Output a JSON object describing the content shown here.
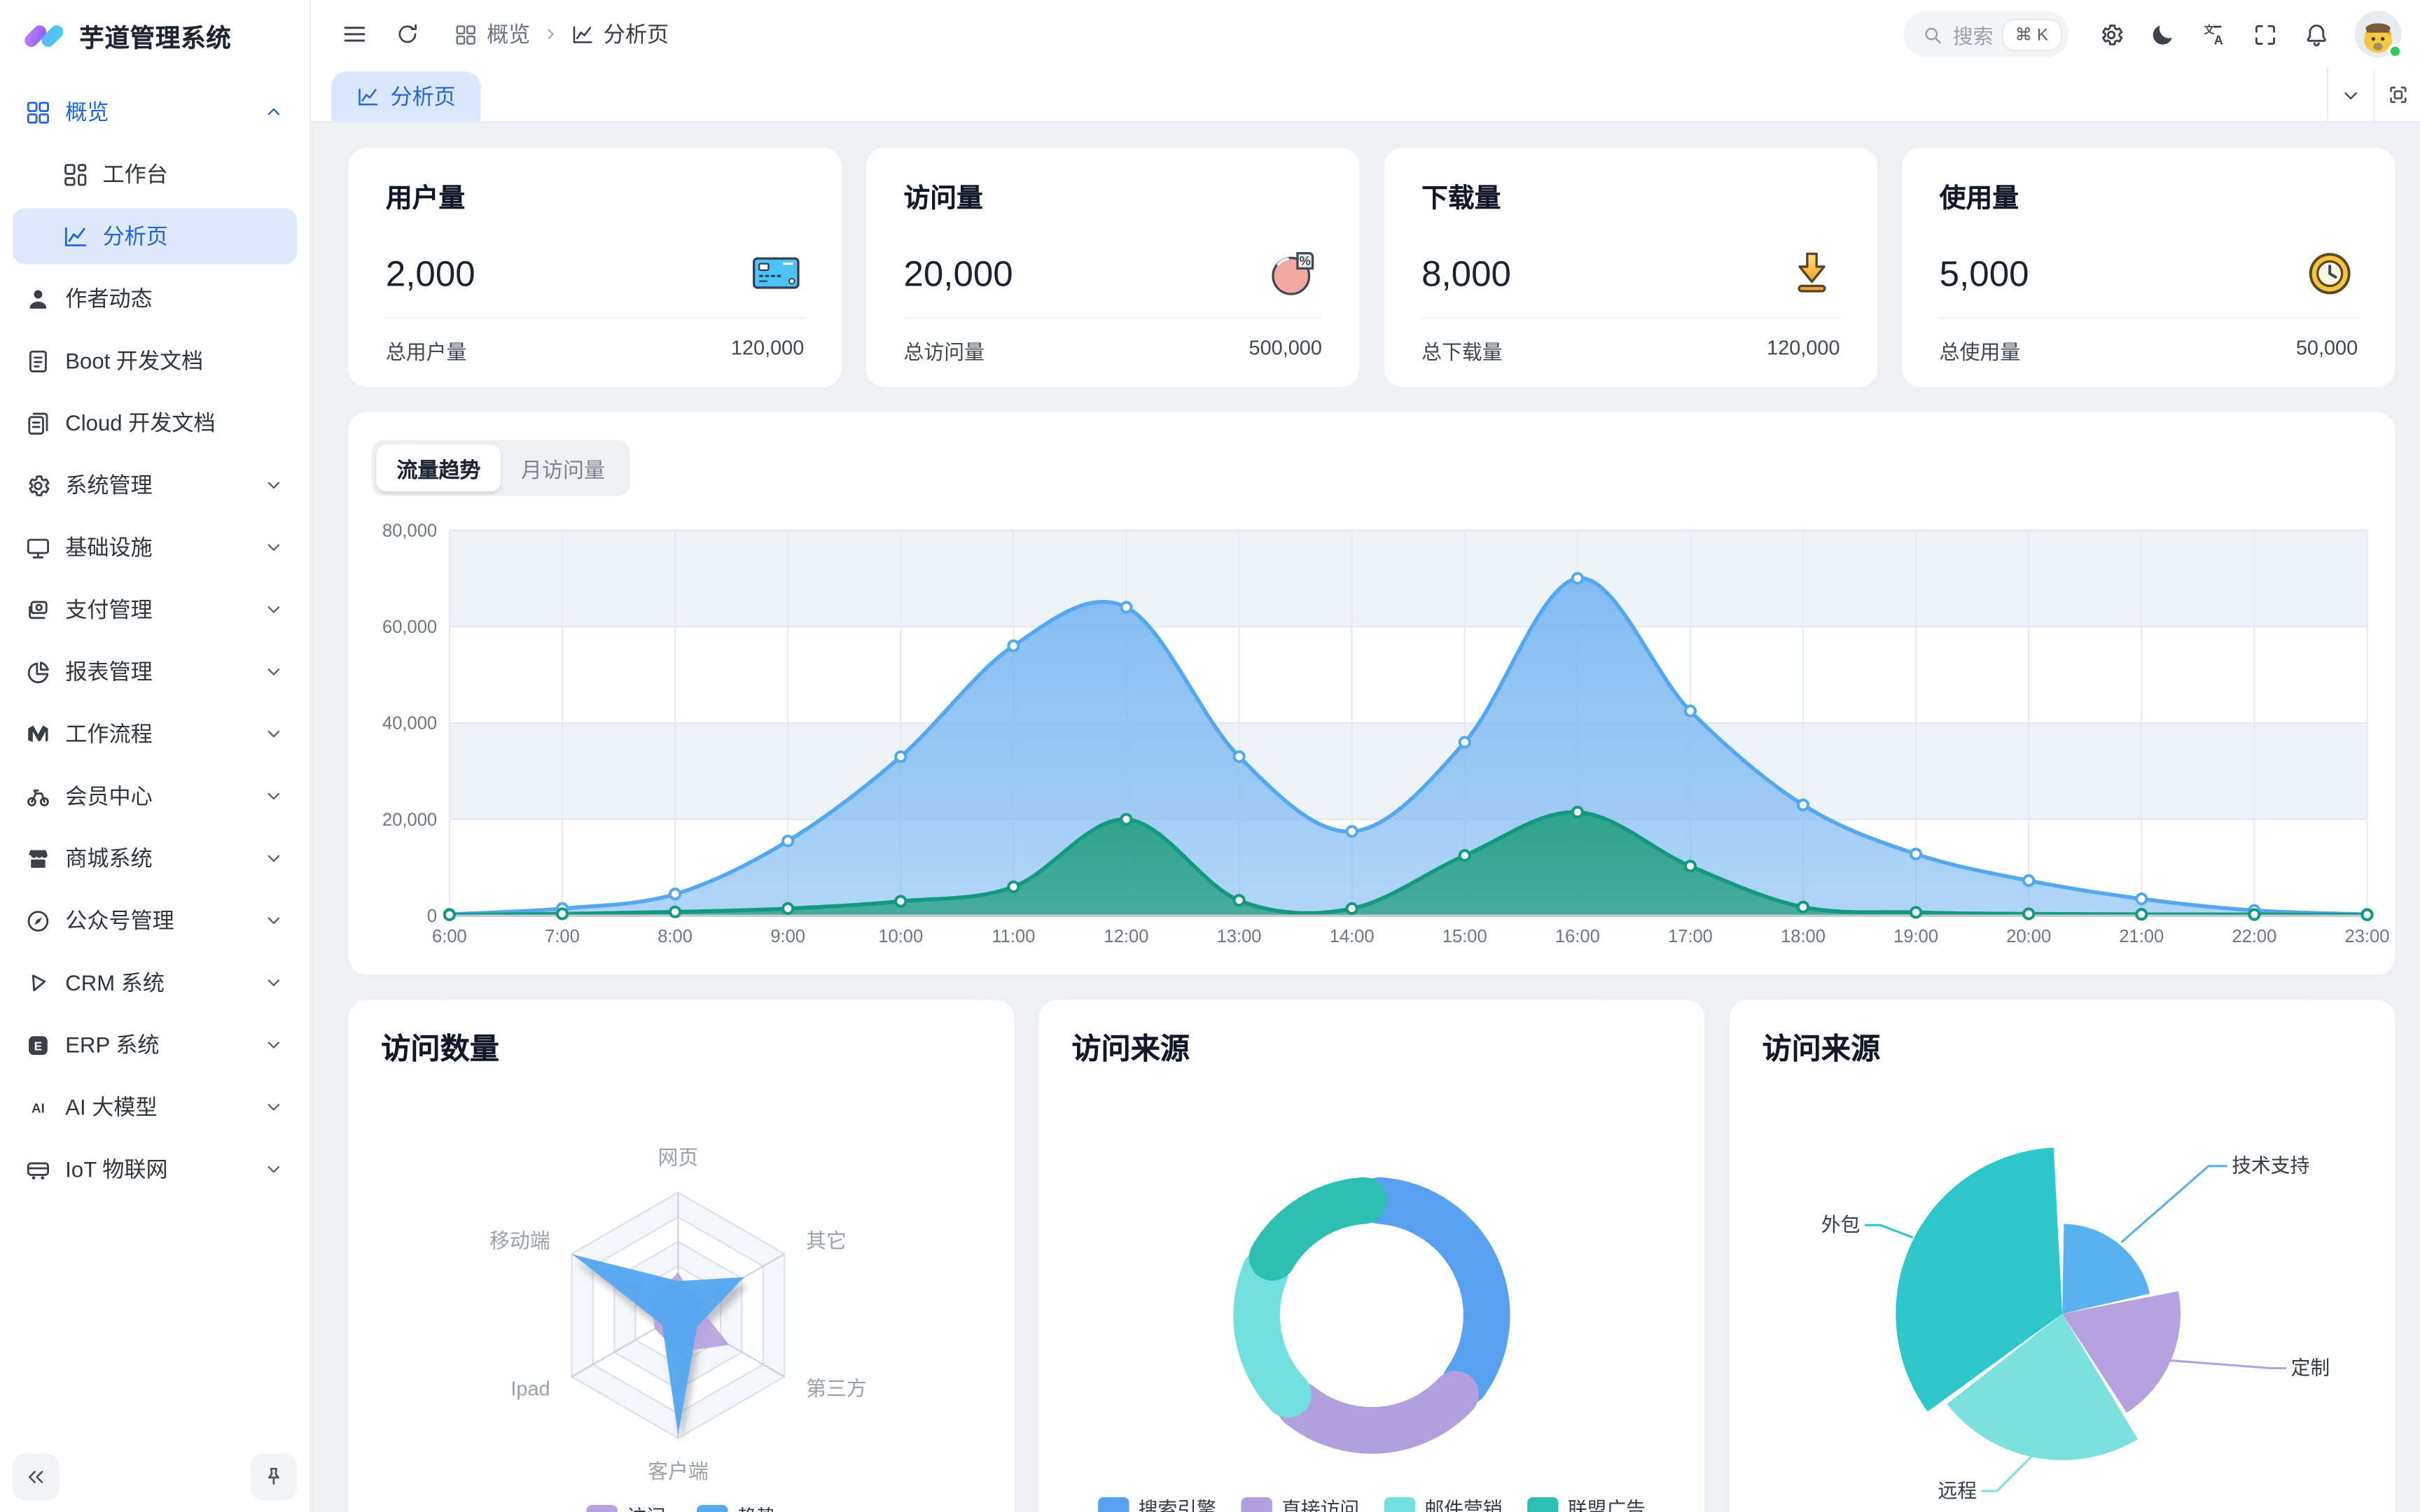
{
  "app": {
    "title": "芋道管理系统"
  },
  "topbar": {
    "breadcrumb": [
      {
        "icon": "grid",
        "label": "概览"
      },
      {
        "icon": "chart",
        "label": "分析页"
      }
    ],
    "search": {
      "placeholder": "搜索",
      "shortcut": "⌘ K"
    },
    "icons": [
      "settings",
      "moon",
      "translate",
      "fullscreen",
      "bell"
    ]
  },
  "tabbar": {
    "tabs": [
      {
        "icon": "chart",
        "label": "分析页",
        "active": true
      }
    ]
  },
  "sidebar": {
    "items": [
      {
        "label": "概览",
        "icon": "grid",
        "accent": true,
        "chevron": "up"
      },
      {
        "label": "工作台",
        "icon": "workbench",
        "child": true
      },
      {
        "label": "分析页",
        "icon": "chart",
        "child": true,
        "selected": true,
        "accent": true
      },
      {
        "label": "作者动态",
        "icon": "user"
      },
      {
        "label": "Boot 开发文档",
        "icon": "doc"
      },
      {
        "label": "Cloud 开发文档",
        "icon": "docs"
      },
      {
        "label": "系统管理",
        "icon": "gear",
        "chevron": "down"
      },
      {
        "label": "基础设施",
        "icon": "monitor",
        "chevron": "down"
      },
      {
        "label": "支付管理",
        "icon": "pay",
        "chevron": "down"
      },
      {
        "label": "报表管理",
        "icon": "pie",
        "chevron": "down"
      },
      {
        "label": "工作流程",
        "icon": "workflow",
        "chevron": "down"
      },
      {
        "label": "会员中心",
        "icon": "bike",
        "chevron": "down"
      },
      {
        "label": "商城系统",
        "icon": "store",
        "chevron": "down"
      },
      {
        "label": "公众号管理",
        "icon": "compass",
        "chevron": "down"
      },
      {
        "label": "CRM 系统",
        "icon": "crm",
        "chevron": "down"
      },
      {
        "label": "ERP 系统",
        "icon": "erp",
        "chevron": "down"
      },
      {
        "label": "AI 大模型",
        "icon": "ai",
        "chevron": "down"
      },
      {
        "label": "IoT 物联网",
        "icon": "iot",
        "chevron": "down"
      }
    ]
  },
  "stats": [
    {
      "title": "用户量",
      "value": "2,000",
      "icon": "stat-card",
      "total_label": "总用户量",
      "total_value": "120,000"
    },
    {
      "title": "访问量",
      "value": "20,000",
      "icon": "stat-pie",
      "total_label": "总访问量",
      "total_value": "500,000"
    },
    {
      "title": "下载量",
      "value": "8,000",
      "icon": "stat-download",
      "total_label": "总下载量",
      "total_value": "120,000"
    },
    {
      "title": "使用量",
      "value": "5,000",
      "icon": "stat-clock",
      "total_label": "总使用量",
      "total_value": "50,000"
    }
  ],
  "traffic": {
    "segments": [
      {
        "label": "流量趋势",
        "active": true
      },
      {
        "label": "月访问量",
        "active": false
      }
    ]
  },
  "cards": [
    {
      "title": "访问数量"
    },
    {
      "title": "访问来源"
    },
    {
      "title": "访问来源"
    }
  ],
  "colors": {
    "accent": "#1f66e0",
    "active_tab_bg": "#dbe7fc",
    "area_blue_line": "#54a8f0",
    "area_blue_fill": "#7db9f2",
    "area_green_line": "#12997e",
    "area_green_fill": "#2ba287",
    "status_online": "#34c759"
  },
  "chart_data": [
    {
      "type": "area",
      "title": "流量趋势",
      "x": [
        "6:00",
        "7:00",
        "8:00",
        "9:00",
        "10:00",
        "11:00",
        "12:00",
        "13:00",
        "14:00",
        "15:00",
        "16:00",
        "17:00",
        "18:00",
        "19:00",
        "20:00",
        "21:00",
        "22:00",
        "23:00"
      ],
      "ylim": [
        0,
        80000
      ],
      "yticks": [
        "0",
        "20,000",
        "40,000",
        "60,000",
        "80,000"
      ],
      "grid": true,
      "legend": "none",
      "series": [
        {
          "name": "series-blue",
          "color": "#54a8f0",
          "fill": "#7db9f2",
          "values": [
            300,
            1500,
            4500,
            15500,
            33000,
            56000,
            64000,
            33000,
            17500,
            36000,
            70000,
            42500,
            23000,
            12800,
            7300,
            3500,
            1100,
            300
          ]
        },
        {
          "name": "series-green",
          "color": "#12997e",
          "fill": "#2ba287",
          "values": [
            200,
            400,
            800,
            1500,
            3000,
            6000,
            20000,
            3200,
            1500,
            12500,
            21500,
            10300,
            1800,
            700,
            400,
            300,
            250,
            200
          ]
        }
      ]
    },
    {
      "type": "radar",
      "title": "访问数量",
      "indicators": [
        "网页",
        "其它",
        "第三方",
        "客户端",
        "Ipad",
        "移动端"
      ],
      "max": 10000,
      "legend_position": "bottom",
      "series": [
        {
          "name": "访问",
          "color": "#b6a2de",
          "values": [
            3500,
            1800,
            4800,
            3000,
            2200,
            2500
          ]
        },
        {
          "name": "趋势",
          "color": "#57a9f0",
          "values": [
            2800,
            6200,
            1800,
            9700,
            1500,
            9900
          ]
        }
      ]
    },
    {
      "type": "pie",
      "subtype": "donut",
      "title": "访问来源",
      "labels": [
        "搜索引擎",
        "直接访问",
        "邮件营销",
        "联盟广告"
      ],
      "values": [
        37,
        26,
        20,
        17
      ],
      "colors": [
        "#58a1f1",
        "#b2a0dc",
        "#71e0de",
        "#2cbfb2"
      ],
      "legend_position": "bottom"
    },
    {
      "type": "pie",
      "subtype": "rose",
      "title": "访问来源",
      "slices": [
        {
          "label": "技术支持",
          "color": "#5ab1ef",
          "angle_deg": 76,
          "radius_ratio": 0.54
        },
        {
          "label": "定制",
          "color": "#b6a2de",
          "angle_deg": 68,
          "radius_ratio": 0.71
        },
        {
          "label": "远程",
          "color": "#7ce0dd",
          "angle_deg": 83,
          "radius_ratio": 0.88
        },
        {
          "label": "外包",
          "color": "#2ec7c9",
          "angle_deg": 123,
          "radius_ratio": 1.0
        }
      ]
    }
  ]
}
